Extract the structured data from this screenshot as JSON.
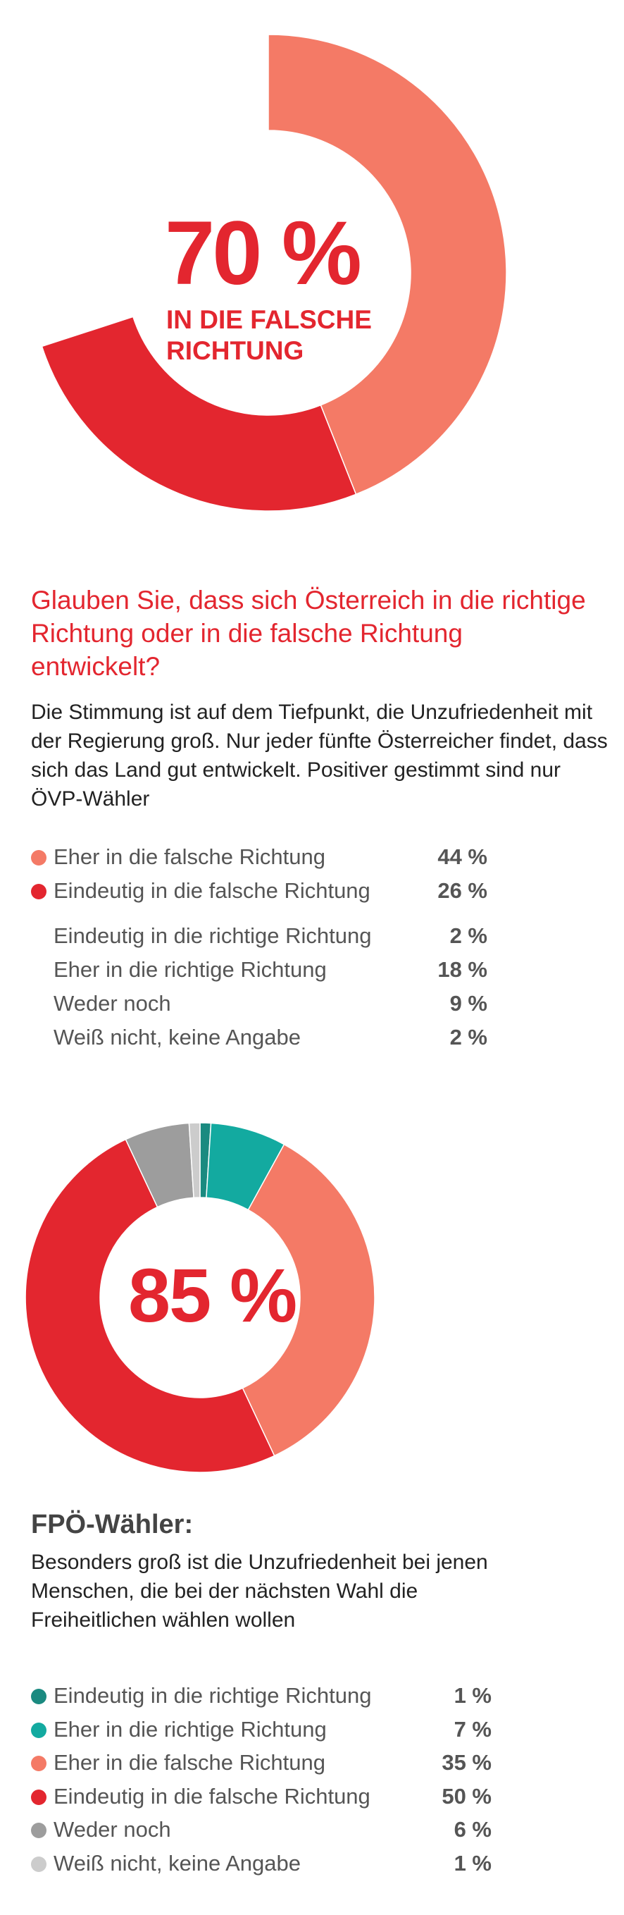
{
  "colors": {
    "accent": "#e3262f",
    "salmon": "#f47a66",
    "red": "#e3262f",
    "teal_dark": "#1a8a80",
    "teal": "#13aaa0",
    "gray": "#9d9d9d",
    "light_gray": "#cccccc"
  },
  "chart_data": [
    {
      "type": "pie",
      "style": "donut",
      "center_value": "70 %",
      "center_label": "IN DIE FALSCHE RICHTUNG",
      "slices": [
        {
          "label": "Eher in die falsche Richtung",
          "value": 44,
          "color": "#f47a66"
        },
        {
          "label": "Eindeutig in die falsche Richtung",
          "value": 26,
          "color": "#e3262f"
        }
      ],
      "total_scale": 100
    },
    {
      "type": "pie",
      "style": "donut",
      "center_value": "85 %",
      "slices": [
        {
          "label": "Eindeutig in die richtige Richtung",
          "value": 1,
          "color": "#1a8a80"
        },
        {
          "label": "Eher in die richtige Richtung",
          "value": 7,
          "color": "#13aaa0"
        },
        {
          "label": "Eher in die falsche Richtung",
          "value": 35,
          "color": "#f47a66"
        },
        {
          "label": "Eindeutig in die falsche Richtung",
          "value": 50,
          "color": "#e3262f"
        },
        {
          "label": "Weder noch",
          "value": 6,
          "color": "#9d9d9d"
        },
        {
          "label": "Weiß nicht, keine Angabe",
          "value": 1,
          "color": "#cccccc"
        }
      ],
      "total_scale": 100
    }
  ],
  "question": "Glauben Sie, dass sich Österreich in die richtige Richtung oder in die falsche Richtung entwickelt?",
  "intro": "Die Stimmung ist auf dem Tiefpunkt, die Unzufriedenheit mit der Regierung groß. Nur jeder fünfte Österreicher findet, dass sich das Land gut entwickelt. Positiver gestimmt sind nur ÖVP-Wähler",
  "legend1": [
    {
      "label": "Eher in die falsche Richtung",
      "value": "44 %",
      "color": "#f47a66"
    },
    {
      "label": "Eindeutig in die falsche Richtung",
      "value": "26 %",
      "color": "#e3262f"
    }
  ],
  "legend2": [
    {
      "label": "Eindeutig in die richtige Richtung",
      "value": "2 %"
    },
    {
      "label": "Eher in die richtige Richtung",
      "value": "18 %"
    },
    {
      "label": "Weder noch",
      "value": "9 %"
    },
    {
      "label": "Weiß nicht, keine Angabe",
      "value": "2 %"
    }
  ],
  "fpo": {
    "title": "FPÖ-Wähler:",
    "text": "Besonders groß ist die Unzufriedenheit bei jenen Menschen, die bei der nächsten Wahl die Freiheitlichen wählen wollen"
  },
  "legend3": [
    {
      "label": "Eindeutig in die richtige Richtung",
      "value": "1 %",
      "color": "#1a8a80"
    },
    {
      "label": "Eher in die richtige Richtung",
      "value": "7 %",
      "color": "#13aaa0"
    },
    {
      "label": "Eher in die falsche Richtung",
      "value": "35 %",
      "color": "#f47a66"
    },
    {
      "label": "Eindeutig in die falsche Richtung",
      "value": "50 %",
      "color": "#e3262f"
    },
    {
      "label": "Weder noch",
      "value": "6 %",
      "color": "#9d9d9d"
    },
    {
      "label": "Weiß nicht, keine Angabe",
      "value": "1 %",
      "color": "#cccccc"
    }
  ]
}
